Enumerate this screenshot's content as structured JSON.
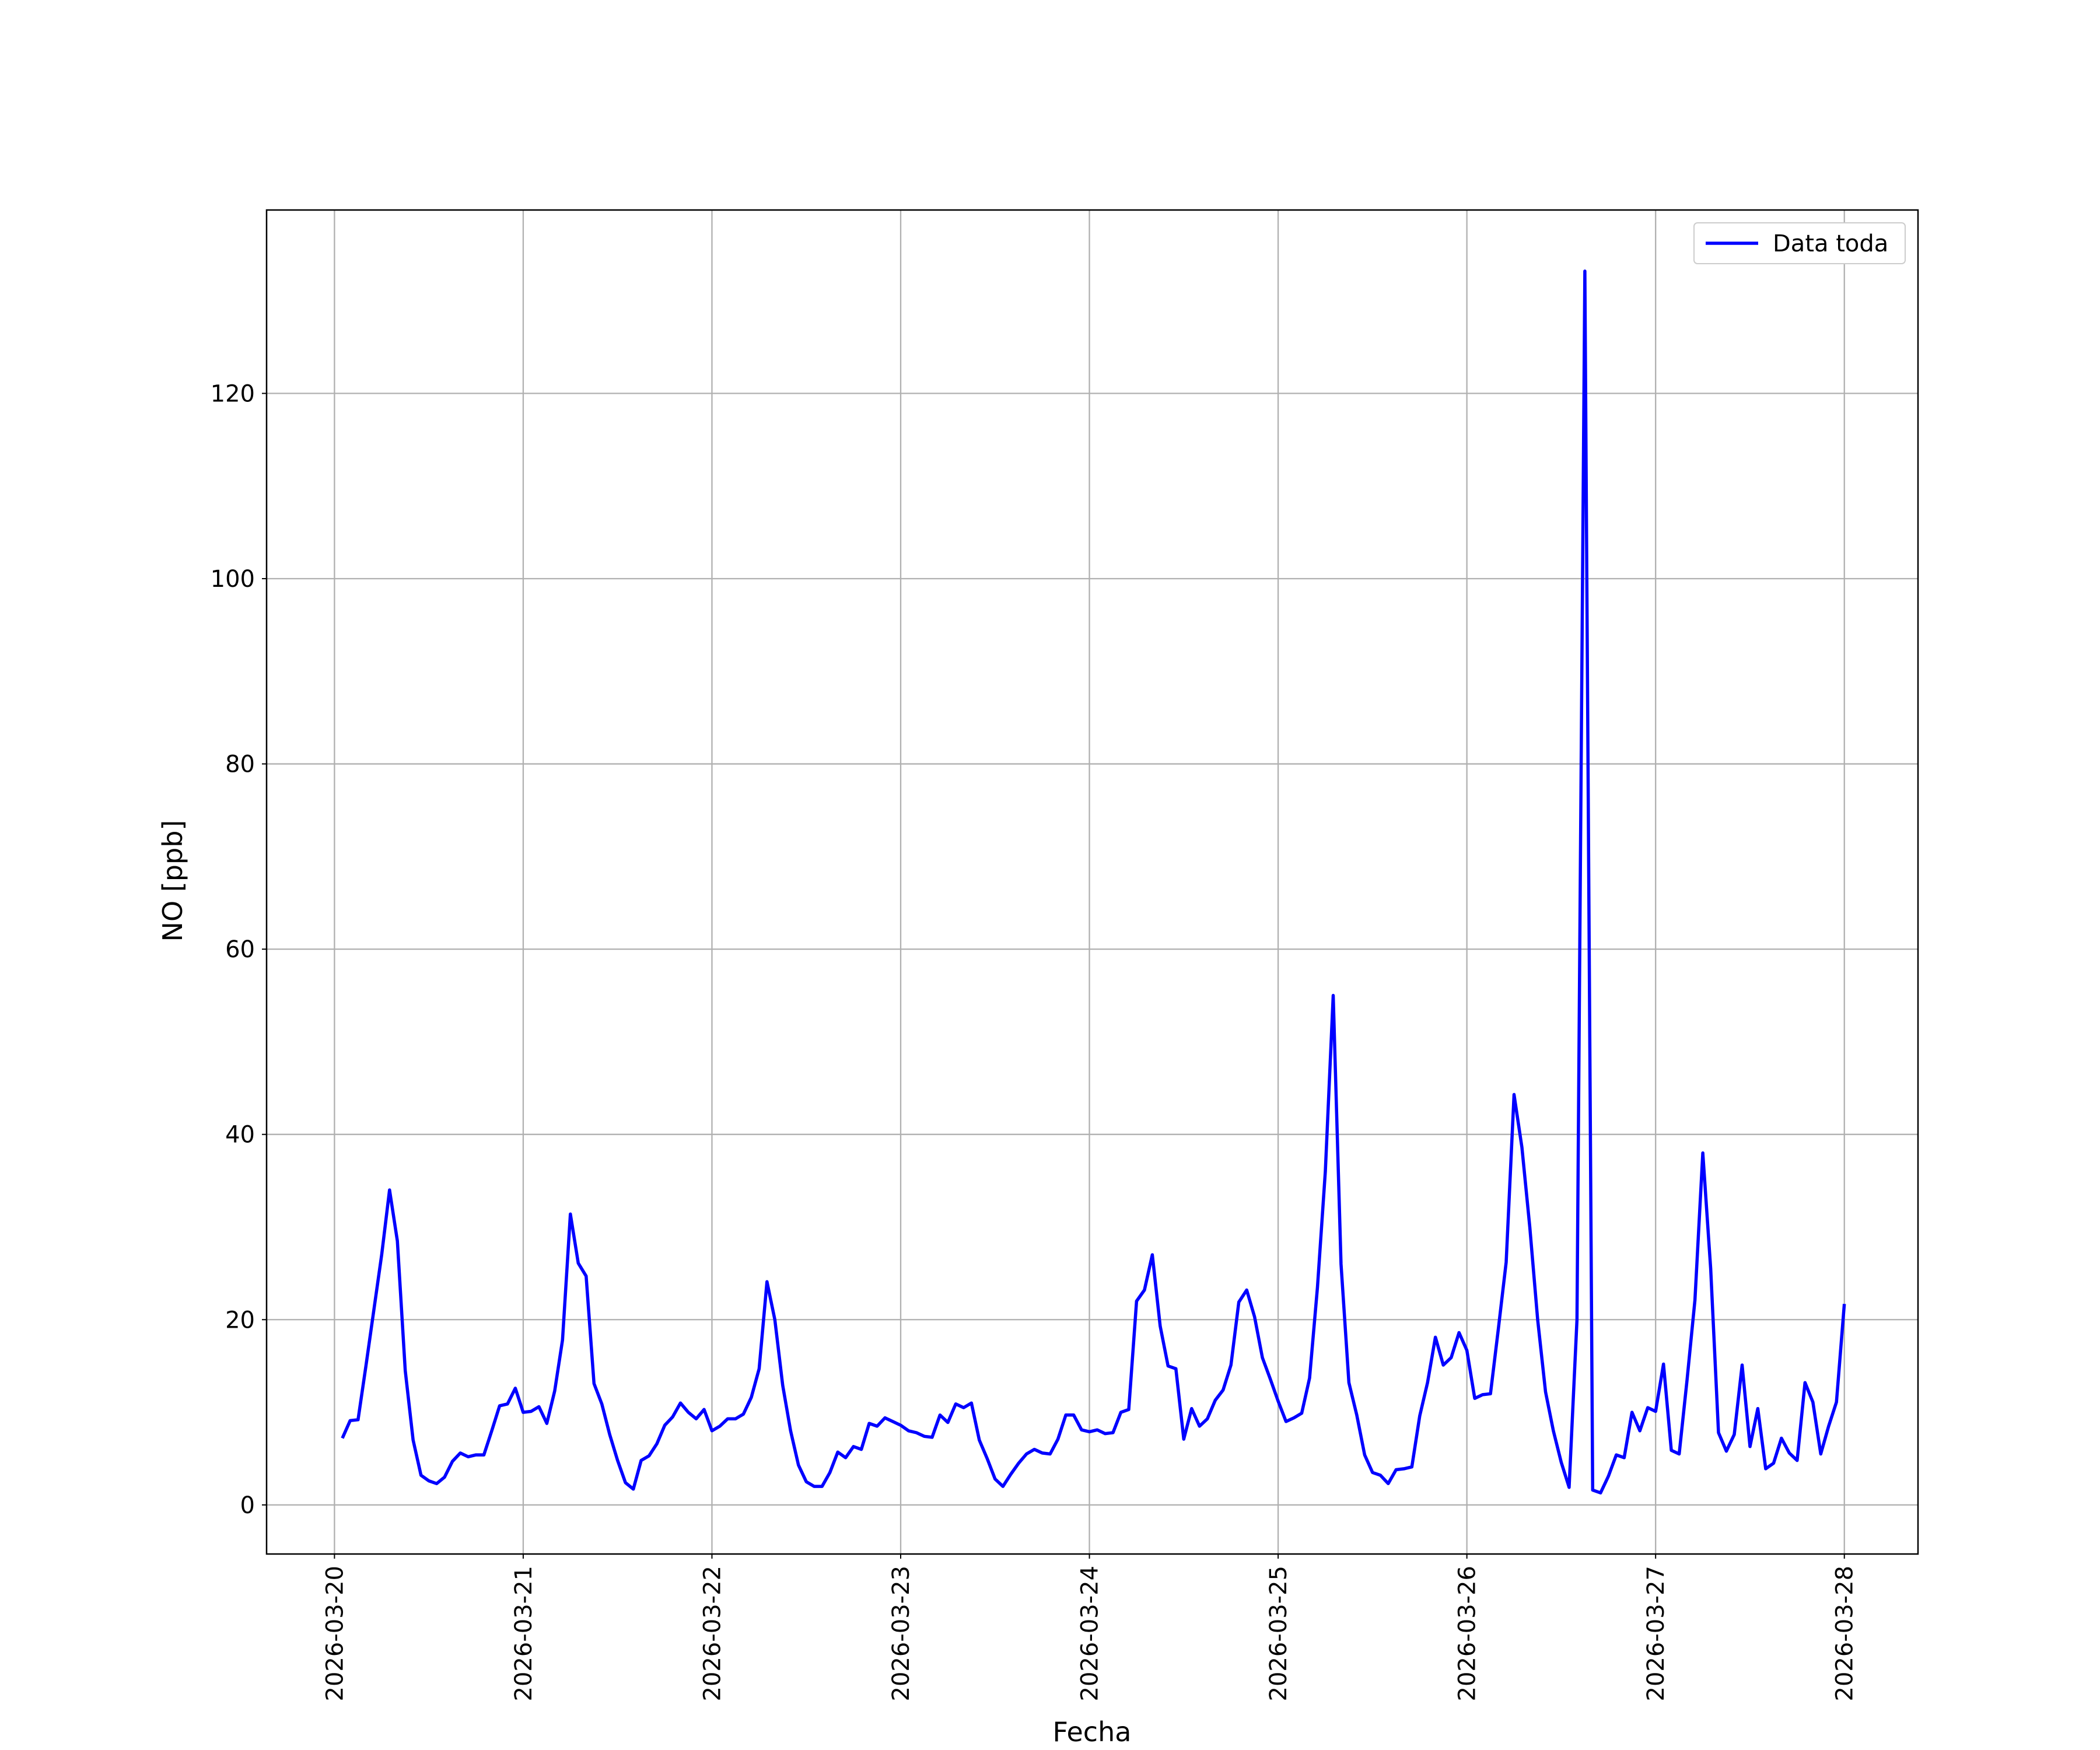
{
  "chart_data": {
    "type": "line",
    "xlabel": "Fecha",
    "ylabel": "NO [ppb]",
    "grid": true,
    "legend": "upper right",
    "xlim": [
      "2026-03-19 15:22",
      "2026-03-28 09:22"
    ],
    "ylim": [
      -5.3,
      139.8
    ],
    "xticks": [
      "2026-03-20",
      "2026-03-21",
      "2026-03-22",
      "2026-03-23",
      "2026-03-24",
      "2026-03-25",
      "2026-03-26",
      "2026-03-27",
      "2026-03-28"
    ],
    "yticks": [
      0,
      20,
      40,
      60,
      80,
      100,
      120
    ],
    "x": [
      "2026-03-20 01:00",
      "2026-03-20 02:00",
      "2026-03-20 03:00",
      "2026-03-20 04:00",
      "2026-03-20 05:00",
      "2026-03-20 06:00",
      "2026-03-20 07:00",
      "2026-03-20 08:00",
      "2026-03-20 09:00",
      "2026-03-20 10:00",
      "2026-03-20 11:00",
      "2026-03-20 12:00",
      "2026-03-20 13:00",
      "2026-03-20 14:00",
      "2026-03-20 15:00",
      "2026-03-20 16:00",
      "2026-03-20 17:00",
      "2026-03-20 18:00",
      "2026-03-20 19:00",
      "2026-03-20 20:00",
      "2026-03-20 21:00",
      "2026-03-20 22:00",
      "2026-03-20 23:00",
      "2026-03-21 00:00",
      "2026-03-21 01:00",
      "2026-03-21 02:00",
      "2026-03-21 03:00",
      "2026-03-21 04:00",
      "2026-03-21 05:00",
      "2026-03-21 06:00",
      "2026-03-21 07:00",
      "2026-03-21 08:00",
      "2026-03-21 09:00",
      "2026-03-21 10:00",
      "2026-03-21 11:00",
      "2026-03-21 12:00",
      "2026-03-21 13:00",
      "2026-03-21 14:00",
      "2026-03-21 15:00",
      "2026-03-21 16:00",
      "2026-03-21 17:00",
      "2026-03-21 18:00",
      "2026-03-21 19:00",
      "2026-03-21 20:00",
      "2026-03-21 21:00",
      "2026-03-21 22:00",
      "2026-03-21 23:00",
      "2026-03-22 00:00",
      "2026-03-22 01:00",
      "2026-03-22 02:00",
      "2026-03-22 03:00",
      "2026-03-22 04:00",
      "2026-03-22 05:00",
      "2026-03-22 06:00",
      "2026-03-22 07:00",
      "2026-03-22 08:00",
      "2026-03-22 09:00",
      "2026-03-22 10:00",
      "2026-03-22 11:00",
      "2026-03-22 12:00",
      "2026-03-22 13:00",
      "2026-03-22 14:00",
      "2026-03-22 15:00",
      "2026-03-22 16:00",
      "2026-03-22 17:00",
      "2026-03-22 18:00",
      "2026-03-22 19:00",
      "2026-03-22 20:00",
      "2026-03-22 21:00",
      "2026-03-22 22:00",
      "2026-03-22 23:00",
      "2026-03-23 00:00",
      "2026-03-23 01:00",
      "2026-03-23 02:00",
      "2026-03-23 03:00",
      "2026-03-23 04:00",
      "2026-03-23 05:00",
      "2026-03-23 06:00",
      "2026-03-23 07:00",
      "2026-03-23 08:00",
      "2026-03-23 09:00",
      "2026-03-23 10:00",
      "2026-03-23 11:00",
      "2026-03-23 12:00",
      "2026-03-23 13:00",
      "2026-03-23 14:00",
      "2026-03-23 15:00",
      "2026-03-23 16:00",
      "2026-03-23 17:00",
      "2026-03-23 18:00",
      "2026-03-23 19:00",
      "2026-03-23 20:00",
      "2026-03-23 21:00",
      "2026-03-23 22:00",
      "2026-03-23 23:00",
      "2026-03-24 00:00",
      "2026-03-24 01:00",
      "2026-03-24 02:00",
      "2026-03-24 03:00",
      "2026-03-24 04:00",
      "2026-03-24 05:00",
      "2026-03-24 06:00",
      "2026-03-24 07:00",
      "2026-03-24 08:00",
      "2026-03-24 09:00",
      "2026-03-24 10:00",
      "2026-03-24 11:00",
      "2026-03-24 12:00",
      "2026-03-24 13:00",
      "2026-03-24 14:00",
      "2026-03-24 15:00",
      "2026-03-24 16:00",
      "2026-03-24 17:00",
      "2026-03-24 18:00",
      "2026-03-24 19:00",
      "2026-03-24 20:00",
      "2026-03-24 21:00",
      "2026-03-24 22:00",
      "2026-03-24 23:00",
      "2026-03-25 00:00",
      "2026-03-25 01:00",
      "2026-03-25 02:00",
      "2026-03-25 03:00",
      "2026-03-25 04:00",
      "2026-03-25 05:00",
      "2026-03-25 06:00",
      "2026-03-25 07:00",
      "2026-03-25 08:00",
      "2026-03-25 09:00",
      "2026-03-25 10:00",
      "2026-03-25 11:00",
      "2026-03-25 12:00",
      "2026-03-25 13:00",
      "2026-03-25 14:00",
      "2026-03-25 15:00",
      "2026-03-25 16:00",
      "2026-03-25 17:00",
      "2026-03-25 18:00",
      "2026-03-25 19:00",
      "2026-03-25 20:00",
      "2026-03-25 21:00",
      "2026-03-25 22:00",
      "2026-03-25 23:00",
      "2026-03-26 00:00",
      "2026-03-26 01:00",
      "2026-03-26 02:00",
      "2026-03-26 03:00",
      "2026-03-26 04:00",
      "2026-03-26 05:00",
      "2026-03-26 06:00",
      "2026-03-26 07:00",
      "2026-03-26 08:00",
      "2026-03-26 09:00",
      "2026-03-26 10:00",
      "2026-03-26 11:00",
      "2026-03-26 12:00",
      "2026-03-26 13:00",
      "2026-03-26 14:00",
      "2026-03-26 15:00",
      "2026-03-26 16:00",
      "2026-03-26 17:00",
      "2026-03-26 18:00",
      "2026-03-26 19:00",
      "2026-03-26 20:00",
      "2026-03-26 21:00",
      "2026-03-26 22:00",
      "2026-03-26 23:00",
      "2026-03-27 00:00",
      "2026-03-27 01:00",
      "2026-03-27 02:00",
      "2026-03-27 03:00",
      "2026-03-27 04:00",
      "2026-03-27 05:00",
      "2026-03-27 06:00",
      "2026-03-27 07:00",
      "2026-03-27 08:00",
      "2026-03-27 09:00",
      "2026-03-27 10:00",
      "2026-03-27 11:00",
      "2026-03-27 12:00",
      "2026-03-27 13:00",
      "2026-03-27 14:00",
      "2026-03-27 15:00",
      "2026-03-27 16:00",
      "2026-03-27 17:00",
      "2026-03-27 18:00",
      "2026-03-27 19:00",
      "2026-03-27 20:00",
      "2026-03-27 21:00",
      "2026-03-27 22:00",
      "2026-03-27 23:00",
      "2026-03-28 00:00"
    ],
    "series": [
      {
        "name": "Data toda",
        "color": "#0000ff",
        "values": [
          7.2,
          9.1,
          9.2,
          15,
          21,
          27,
          34,
          28.5,
          14.5,
          7,
          3.2,
          2.6,
          2.3,
          3,
          4.7,
          5.6,
          5.2,
          5.4,
          5.4,
          8,
          10.7,
          10.9,
          12.6,
          10,
          10.1,
          10.6,
          8.8,
          12.3,
          17.8,
          31.4,
          26.1,
          24.7,
          13.1,
          10.9,
          7.6,
          4.8,
          2.4,
          1.7,
          4.8,
          5.3,
          6.6,
          8.6,
          9.5,
          11,
          10,
          9.3,
          10.3,
          8,
          8.5,
          9.3,
          9.3,
          9.8,
          11.6,
          14.7,
          24.1,
          20,
          12.9,
          8,
          4.3,
          2.5,
          2,
          2,
          3.5,
          5.7,
          5.1,
          6.3,
          6,
          8.8,
          8.5,
          9.4,
          9,
          8.6,
          8,
          7.8,
          7.4,
          7.3,
          9.7,
          8.9,
          10.9,
          10.5,
          11,
          7,
          5,
          2.8,
          2,
          3.3,
          4.5,
          5.5,
          6,
          5.6,
          5.5,
          7.1,
          9.7,
          9.7,
          8.1,
          7.9,
          8.1,
          7.7,
          7.8,
          10,
          10.3,
          22,
          23.2,
          27,
          19.3,
          15,
          14.7,
          7.1,
          10.4,
          8.5,
          9.3,
          11.3,
          12.4,
          15.1,
          21.9,
          23.2,
          20.3,
          15.9,
          13.6,
          11.2,
          9,
          9.4,
          9.9,
          13.7,
          23.5,
          36,
          55,
          26,
          13.2,
          9.7,
          5.4,
          3.5,
          3.2,
          2.3,
          3.8,
          3.9,
          4.1,
          9.6,
          13.2,
          18.1,
          15.1,
          15.9,
          18.6,
          16.7,
          11.5,
          11.9,
          12,
          19,
          26.2,
          44.3,
          38.6,
          30,
          20,
          12.2,
          8,
          4.6,
          1.9,
          20,
          133.2,
          1.6,
          1.3,
          3.1,
          5.4,
          5.1,
          10,
          8,
          10.5,
          10.1,
          15.2,
          5.9,
          5.5,
          13.5,
          22.1,
          38,
          25.5,
          7.8,
          5.8,
          7.6,
          15.1,
          6.3,
          10.4,
          3.9,
          4.5,
          7.2,
          5.6,
          4.8,
          13.2,
          11.1,
          5.5,
          8.5,
          11.1,
          21.7
        ]
      }
    ]
  }
}
